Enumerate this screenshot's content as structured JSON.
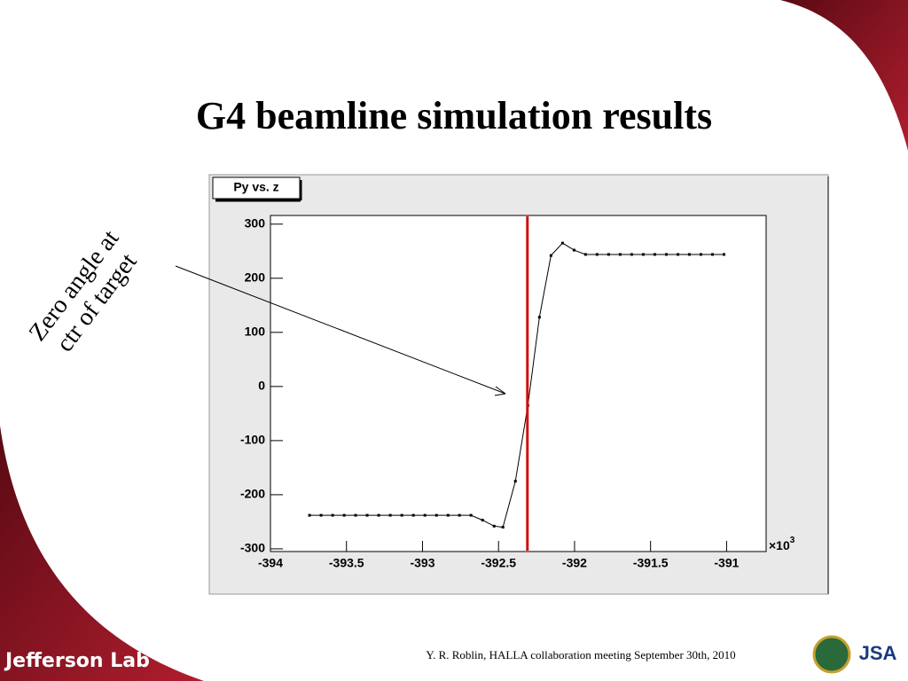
{
  "slide": {
    "title": "G4 beamline simulation results",
    "annotation": [
      "Zero angle at",
      "ctr of target"
    ],
    "footer": "Y. R. Roblin,  HALLA collaboration  meeting September 30th, 2010",
    "logo_left": "Jefferson Lab",
    "logo_right": "JSA"
  },
  "chart_data": {
    "type": "line",
    "title": "Py vs. z",
    "color": "#000000",
    "x": [
      -393.743,
      -393.667,
      -393.591,
      -393.515,
      -393.44,
      -393.364,
      -393.288,
      -393.212,
      -393.136,
      -393.06,
      -392.984,
      -392.908,
      -392.832,
      -392.757,
      -392.681,
      -392.605,
      -392.529,
      -392.471,
      -392.389,
      -392.307,
      -392.231,
      -392.155,
      -392.079,
      -392.003,
      -391.928,
      -391.852,
      -391.776,
      -391.7,
      -391.624,
      -391.548,
      -391.472,
      -391.396,
      -391.32,
      -391.245,
      -391.169,
      -391.093,
      -391.017
    ],
    "values": [
      -238,
      -238,
      -238,
      -238,
      -238,
      -238,
      -238,
      -238,
      -238,
      -238,
      -238,
      -238,
      -238,
      -238,
      -238,
      -247,
      -258,
      -260,
      -175,
      -35,
      128,
      242,
      265,
      252,
      244,
      244,
      244,
      244,
      244,
      244,
      244,
      244,
      244,
      244,
      244,
      244,
      244
    ],
    "xlim": [
      -394,
      -390.74
    ],
    "xticks": [
      -394,
      -393.5,
      -393,
      -392.5,
      -392,
      -391.5,
      -391
    ],
    "ylim": [
      -305,
      316
    ],
    "yticks": [
      -300,
      -200,
      -100,
      0,
      100,
      200,
      300
    ],
    "x_scale": {
      "base": "×10",
      "exp": "3"
    },
    "vline": {
      "value": -392.31,
      "color": "#d01010"
    }
  }
}
